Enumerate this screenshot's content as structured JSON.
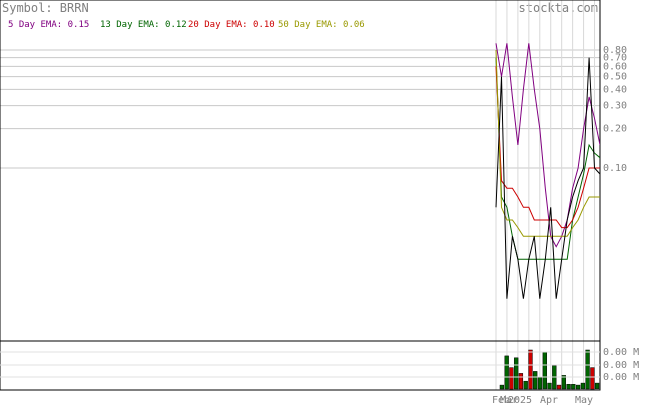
{
  "header": {
    "symbol_text": "Symbol: BRRN",
    "watermark": "stockta.com"
  },
  "legend": [
    {
      "label": "5 Day EMA: 0.15",
      "color": "#800080"
    },
    {
      "label": "13 Day EMA: 0.12",
      "color": "#006400"
    },
    {
      "label": "20 Day EMA: 0.10",
      "color": "#cc0000"
    },
    {
      "label": "50 Day EMA: 0.06",
      "color": "#999900"
    }
  ],
  "chart_data": {
    "type": "line",
    "title": "Symbol: BRRN",
    "price_axis": {
      "scale": "log",
      "tick_labels": [
        "0.80",
        "0.70",
        "0.60",
        "0.50",
        "0.40",
        "0.30",
        "0.20",
        "0.10"
      ],
      "tick_values": [
        0.8,
        0.7,
        0.6,
        0.5,
        0.4,
        0.3,
        0.2,
        0.1
      ]
    },
    "volume_axis": {
      "tick_labels": [
        "0.00 M",
        "0.00 M",
        "0.00 M"
      ]
    },
    "x_tick_labels": [
      "Feb",
      "Mar",
      "2025",
      "Apr",
      "May"
    ],
    "series": [
      {
        "name": "5 Day EMA",
        "color": "#800080",
        "values": [
          0.9,
          0.5,
          0.9,
          0.35,
          0.15,
          0.4,
          0.9,
          0.4,
          0.2,
          0.07,
          0.03,
          0.025,
          0.03,
          0.04,
          0.07,
          0.1,
          0.2,
          0.35,
          0.24,
          0.15
        ]
      },
      {
        "name": "13 Day EMA",
        "color": "#006400",
        "values": [
          0.7,
          0.06,
          0.05,
          0.03,
          0.02,
          0.02,
          0.02,
          0.02,
          0.02,
          0.02,
          0.02,
          0.02,
          0.02,
          0.02,
          0.04,
          0.06,
          0.09,
          0.15,
          0.13,
          0.12
        ]
      },
      {
        "name": "20 Day EMA",
        "color": "#cc0000",
        "values": [
          0.6,
          0.08,
          0.07,
          0.07,
          0.06,
          0.05,
          0.05,
          0.04,
          0.04,
          0.04,
          0.04,
          0.04,
          0.035,
          0.035,
          0.04,
          0.05,
          0.07,
          0.1,
          0.1,
          0.1
        ]
      },
      {
        "name": "50 Day EMA",
        "color": "#999900",
        "values": [
          0.8,
          0.05,
          0.04,
          0.04,
          0.035,
          0.03,
          0.03,
          0.03,
          0.03,
          0.03,
          0.03,
          0.03,
          0.03,
          0.03,
          0.035,
          0.04,
          0.05,
          0.06,
          0.06,
          0.06
        ]
      },
      {
        "name": "Price",
        "color": "#000000",
        "values": [
          0.05,
          0.5,
          0.01,
          0.03,
          0.02,
          0.01,
          0.02,
          0.03,
          0.01,
          0.02,
          0.05,
          0.01,
          0.02,
          0.04,
          0.06,
          0.08,
          0.1,
          0.7,
          0.1,
          0.09
        ]
      }
    ],
    "volume_bars": [
      {
        "value": 0.1,
        "color": "green"
      },
      {
        "value": 0.85,
        "color": "green"
      },
      {
        "value": 0.55,
        "color": "red"
      },
      {
        "value": 0.8,
        "color": "green"
      },
      {
        "value": 0.4,
        "color": "red"
      },
      {
        "value": 0.2,
        "color": "green"
      },
      {
        "value": 1.0,
        "color": "red"
      },
      {
        "value": 0.45,
        "color": "green"
      },
      {
        "value": 0.3,
        "color": "green"
      },
      {
        "value": 0.95,
        "color": "green"
      },
      {
        "value": 0.15,
        "color": "green"
      },
      {
        "value": 0.6,
        "color": "green"
      },
      {
        "value": 0.1,
        "color": "red"
      },
      {
        "value": 0.35,
        "color": "green"
      },
      {
        "value": 0.12,
        "color": "green"
      },
      {
        "value": 0.12,
        "color": "green"
      },
      {
        "value": 0.1,
        "color": "green"
      },
      {
        "value": 0.15,
        "color": "green"
      },
      {
        "value": 1.0,
        "color": "green"
      },
      {
        "value": 0.55,
        "color": "red"
      },
      {
        "value": 0.15,
        "color": "green"
      }
    ]
  }
}
